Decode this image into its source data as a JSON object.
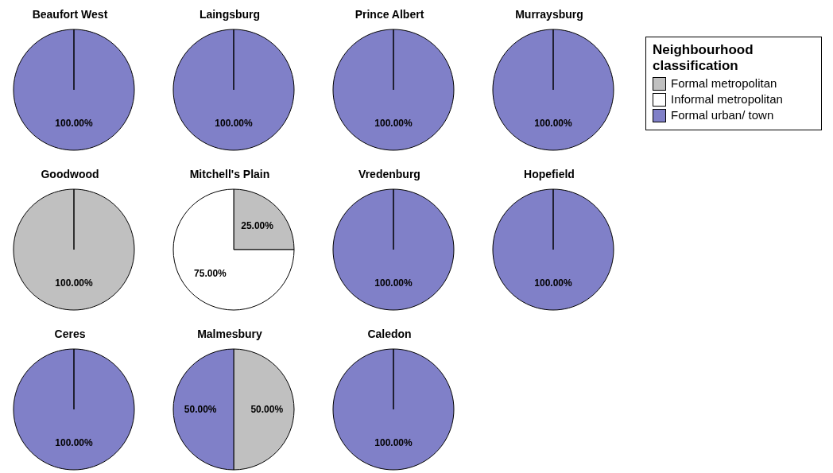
{
  "chart_data": [
    {
      "type": "pie",
      "title": "Beaufort West",
      "categories": [
        "Formal metropolitan",
        "Informal metropolitan",
        "Formal urban/ town"
      ],
      "values": [
        0,
        0,
        100
      ],
      "colors": [
        "#c0c0c0",
        "#ffffff",
        "#8080c8"
      ],
      "value_labels": [
        null,
        null,
        "100.00%"
      ],
      "legend": "right",
      "legend_title": "Neighbourhood classification"
    },
    {
      "type": "pie",
      "title": "Laingsburg",
      "categories": [
        null,
        null,
        null
      ],
      "values": [
        0,
        0,
        100
      ],
      "colors": [
        "#c0c0c0",
        "#ffffff",
        "#8080c8"
      ],
      "value_labels": [
        null,
        null,
        "100.00%"
      ]
    },
    {
      "type": "pie",
      "title": "Prince Albert",
      "categories": [
        null,
        null,
        null
      ],
      "values": [
        0,
        0,
        100
      ],
      "colors": [
        "#c0c0c0",
        "#ffffff",
        "#8080c8"
      ],
      "value_labels": [
        null,
        null,
        "100.00%"
      ]
    },
    {
      "type": "pie",
      "title": "Murraysburg",
      "categories": [
        null,
        null,
        null
      ],
      "values": [
        0,
        0,
        100
      ],
      "colors": [
        "#c0c0c0",
        "#ffffff",
        "#8080c8"
      ],
      "value_labels": [
        null,
        null,
        "100.00%"
      ]
    },
    {
      "type": "pie",
      "title": "Goodwood",
      "categories": [
        null,
        null,
        null
      ],
      "values": [
        100,
        0,
        0
      ],
      "colors": [
        "#c0c0c0",
        "#ffffff",
        "#8080c8"
      ],
      "value_labels": [
        "100.00%",
        null,
        null
      ]
    },
    {
      "type": "pie",
      "title": "Mitchell's Plain",
      "categories": [
        null,
        null,
        null
      ],
      "values": [
        25,
        75,
        0
      ],
      "colors": [
        "#c0c0c0",
        "#ffffff",
        "#8080c8"
      ],
      "value_labels": [
        "25.00%",
        "75.00%",
        null
      ]
    },
    {
      "type": "pie",
      "title": "Vredenburg",
      "categories": [
        null,
        null,
        null
      ],
      "values": [
        0,
        0,
        100
      ],
      "colors": [
        "#c0c0c0",
        "#ffffff",
        "#8080c8"
      ],
      "value_labels": [
        null,
        null,
        "100.00%"
      ]
    },
    {
      "type": "pie",
      "title": "Hopefield",
      "categories": [
        null,
        null,
        null
      ],
      "values": [
        0,
        0,
        100
      ],
      "colors": [
        "#c0c0c0",
        "#ffffff",
        "#8080c8"
      ],
      "value_labels": [
        null,
        null,
        "100.00%"
      ]
    },
    {
      "type": "pie",
      "title": "Ceres",
      "categories": [
        null,
        null,
        null
      ],
      "values": [
        0,
        0,
        100
      ],
      "colors": [
        "#c0c0c0",
        "#ffffff",
        "#8080c8"
      ],
      "value_labels": [
        null,
        null,
        "100.00%"
      ]
    },
    {
      "type": "pie",
      "title": "Malmesbury",
      "categories": [
        null,
        null,
        null
      ],
      "values": [
        50,
        0,
        50
      ],
      "colors": [
        "#c0c0c0",
        "#ffffff",
        "#8080c8"
      ],
      "value_labels": [
        "50.00%",
        null,
        "50.00%"
      ]
    },
    {
      "type": "pie",
      "title": "Caledon",
      "categories": [
        null,
        null,
        null
      ],
      "values": [
        0,
        0,
        100
      ],
      "colors": [
        "#c0c0c0",
        "#ffffff",
        "#8080c8"
      ],
      "value_labels": [
        null,
        null,
        "100.00%"
      ]
    }
  ]
}
